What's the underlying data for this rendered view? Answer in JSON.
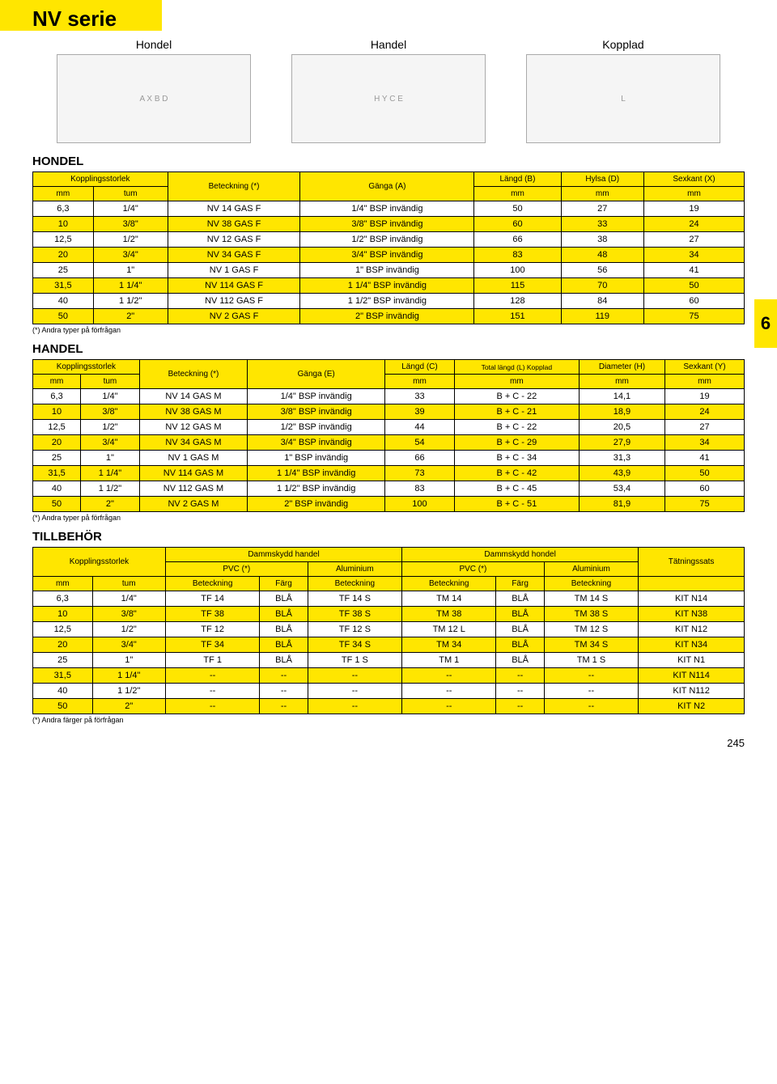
{
  "page": {
    "title": "NV serie",
    "side_tab": "6",
    "page_number": "245"
  },
  "diagrams": {
    "labels": [
      "Hondel",
      "Handel",
      "Kopplad"
    ]
  },
  "hondel": {
    "title": "HONDEL",
    "headers": {
      "kopplingsstorlek": "Kopplingsstorlek",
      "beteckning": "Beteckning (*)",
      "ganga": "Gänga (A)",
      "langd": "Längd (B)",
      "hylsa": "Hylsa (D)",
      "sexkant": "Sexkant (X)",
      "mm": "mm",
      "tum": "tum"
    },
    "rows": [
      [
        "6,3",
        "1/4\"",
        "NV 14 GAS F",
        "1/4\" BSP invändig",
        "50",
        "27",
        "19"
      ],
      [
        "10",
        "3/8\"",
        "NV 38 GAS F",
        "3/8\" BSP invändig",
        "60",
        "33",
        "24"
      ],
      [
        "12,5",
        "1/2\"",
        "NV 12 GAS F",
        "1/2\" BSP invändig",
        "66",
        "38",
        "27"
      ],
      [
        "20",
        "3/4\"",
        "NV 34 GAS F",
        "3/4\" BSP invändig",
        "83",
        "48",
        "34"
      ],
      [
        "25",
        "1\"",
        "NV 1 GAS F",
        "1\" BSP invändig",
        "100",
        "56",
        "41"
      ],
      [
        "31,5",
        "1 1/4\"",
        "NV 114 GAS F",
        "1 1/4\" BSP invändig",
        "115",
        "70",
        "50"
      ],
      [
        "40",
        "1 1/2\"",
        "NV 112 GAS F",
        "1 1/2\" BSP invändig",
        "128",
        "84",
        "60"
      ],
      [
        "50",
        "2\"",
        "NV 2 GAS F",
        "2\" BSP invändig",
        "151",
        "119",
        "75"
      ]
    ],
    "footnote": "(*) Andra typer på förfrågan"
  },
  "handel": {
    "title": "HANDEL",
    "headers": {
      "kopplingsstorlek": "Kopplingsstorlek",
      "beteckning": "Beteckning (*)",
      "ganga": "Gänga (E)",
      "langd": "Längd (C)",
      "total": "Total längd (L) Kopplad",
      "diameter": "Diameter (H)",
      "sexkant": "Sexkant (Y)",
      "mm": "mm",
      "tum": "tum"
    },
    "rows": [
      [
        "6,3",
        "1/4\"",
        "NV 14 GAS M",
        "1/4\" BSP invändig",
        "33",
        "B + C - 22",
        "14,1",
        "19"
      ],
      [
        "10",
        "3/8\"",
        "NV 38 GAS M",
        "3/8\" BSP invändig",
        "39",
        "B + C - 21",
        "18,9",
        "24"
      ],
      [
        "12,5",
        "1/2\"",
        "NV 12 GAS M",
        "1/2\" BSP invändig",
        "44",
        "B + C - 22",
        "20,5",
        "27"
      ],
      [
        "20",
        "3/4\"",
        "NV 34 GAS M",
        "3/4\" BSP invändig",
        "54",
        "B + C - 29",
        "27,9",
        "34"
      ],
      [
        "25",
        "1\"",
        "NV 1 GAS M",
        "1\" BSP invändig",
        "66",
        "B + C - 34",
        "31,3",
        "41"
      ],
      [
        "31,5",
        "1 1/4\"",
        "NV 114 GAS M",
        "1 1/4\" BSP invändig",
        "73",
        "B + C - 42",
        "43,9",
        "50"
      ],
      [
        "40",
        "1 1/2\"",
        "NV 112 GAS M",
        "1 1/2\" BSP invändig",
        "83",
        "B + C - 45",
        "53,4",
        "60"
      ],
      [
        "50",
        "2\"",
        "NV 2 GAS M",
        "2\" BSP invändig",
        "100",
        "B + C - 51",
        "81,9",
        "75"
      ]
    ],
    "footnote": "(*) Andra typer på förfrågan"
  },
  "tillbehor": {
    "title": "TILLBEHÖR",
    "headers": {
      "kopplingsstorlek": "Kopplingsstorlek",
      "damm_handel": "Dammskydd handel",
      "damm_hondel": "Dammskydd hondel",
      "pvc": "PVC (*)",
      "aluminium": "Aluminium",
      "tatning": "Tätningssats",
      "mm": "mm",
      "tum": "tum",
      "beteckning": "Beteckning",
      "farg": "Färg"
    },
    "rows": [
      [
        "6,3",
        "1/4\"",
        "TF 14",
        "BLÅ",
        "TF 14 S",
        "TM 14",
        "BLÅ",
        "TM 14 S",
        "KIT N14"
      ],
      [
        "10",
        "3/8\"",
        "TF 38",
        "BLÅ",
        "TF 38 S",
        "TM 38",
        "BLÅ",
        "TM 38 S",
        "KIT N38"
      ],
      [
        "12,5",
        "1/2\"",
        "TF 12",
        "BLÅ",
        "TF 12 S",
        "TM 12 L",
        "BLÅ",
        "TM 12 S",
        "KIT N12"
      ],
      [
        "20",
        "3/4\"",
        "TF 34",
        "BLÅ",
        "TF 34 S",
        "TM 34",
        "BLÅ",
        "TM 34 S",
        "KIT N34"
      ],
      [
        "25",
        "1\"",
        "TF 1",
        "BLÅ",
        "TF 1 S",
        "TM 1",
        "BLÅ",
        "TM 1 S",
        "KIT N1"
      ],
      [
        "31,5",
        "1 1/4\"",
        "--",
        "--",
        "--",
        "--",
        "--",
        "--",
        "KIT N114"
      ],
      [
        "40",
        "1 1/2\"",
        "--",
        "--",
        "--",
        "--",
        "--",
        "--",
        "KIT N112"
      ],
      [
        "50",
        "2\"",
        "--",
        "--",
        "--",
        "--",
        "--",
        "--",
        "KIT N2"
      ]
    ],
    "footnote": "(*) Andra färger på förfrågan"
  }
}
